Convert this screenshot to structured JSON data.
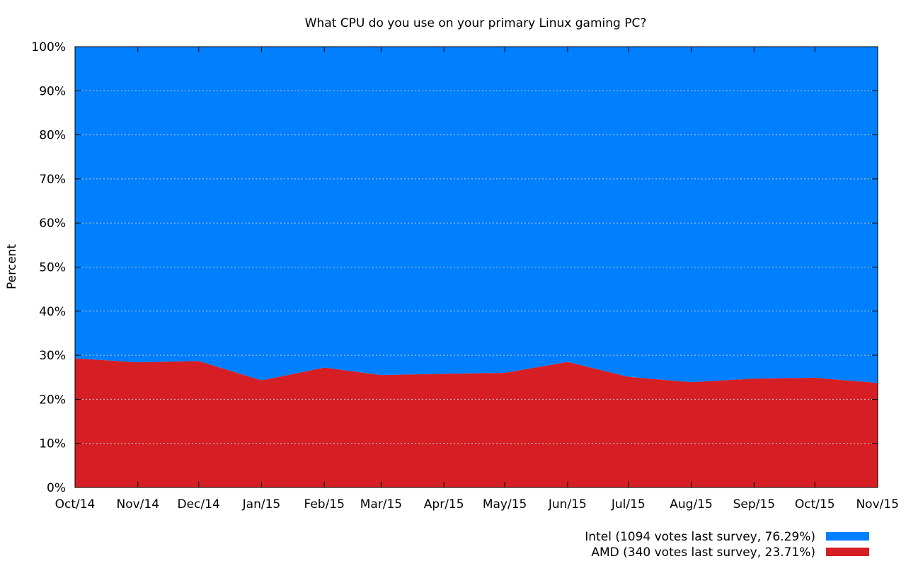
{
  "chart_data": {
    "type": "area",
    "stacked": true,
    "title": "What CPU do you use on your primary Linux gaming PC?",
    "xlabel": "",
    "ylabel": "Percent",
    "ylim": [
      0,
      100
    ],
    "yticks": [
      "0%",
      "10%",
      "20%",
      "30%",
      "40%",
      "50%",
      "60%",
      "70%",
      "80%",
      "90%",
      "100%"
    ],
    "grid": true,
    "legend_position": "bottom-right",
    "x": [
      "Oct/14",
      "Nov/14",
      "Dec/14",
      "Jan/15",
      "Feb/15",
      "Mar/15",
      "Apr/15",
      "May/15",
      "Jun/15",
      "Jul/15",
      "Aug/15",
      "Sep/15",
      "Oct/15",
      "Nov/15"
    ],
    "x_dates": [
      "2014-10",
      "2014-11",
      "2014-12",
      "2015-01",
      "2015-02",
      "2015-03",
      "2015-04",
      "2015-05",
      "2015-06",
      "2015-07",
      "2015-08",
      "2015-09",
      "2015-10",
      "2015-11"
    ],
    "series": [
      {
        "name": "AMD (340 votes last survey, 23.71%)",
        "color": "#d51f24",
        "values": [
          29.3,
          28.4,
          28.7,
          24.3,
          27.2,
          25.5,
          25.8,
          26.0,
          28.5,
          25.1,
          23.9,
          24.7,
          24.9,
          23.71
        ]
      },
      {
        "name": "Intel (1094 votes last survey, 76.29%)",
        "color": "#0080ff",
        "values": [
          70.7,
          71.6,
          71.3,
          75.7,
          72.8,
          74.5,
          74.2,
          74.0,
          71.5,
          74.9,
          76.1,
          75.3,
          75.1,
          76.29
        ]
      }
    ]
  }
}
